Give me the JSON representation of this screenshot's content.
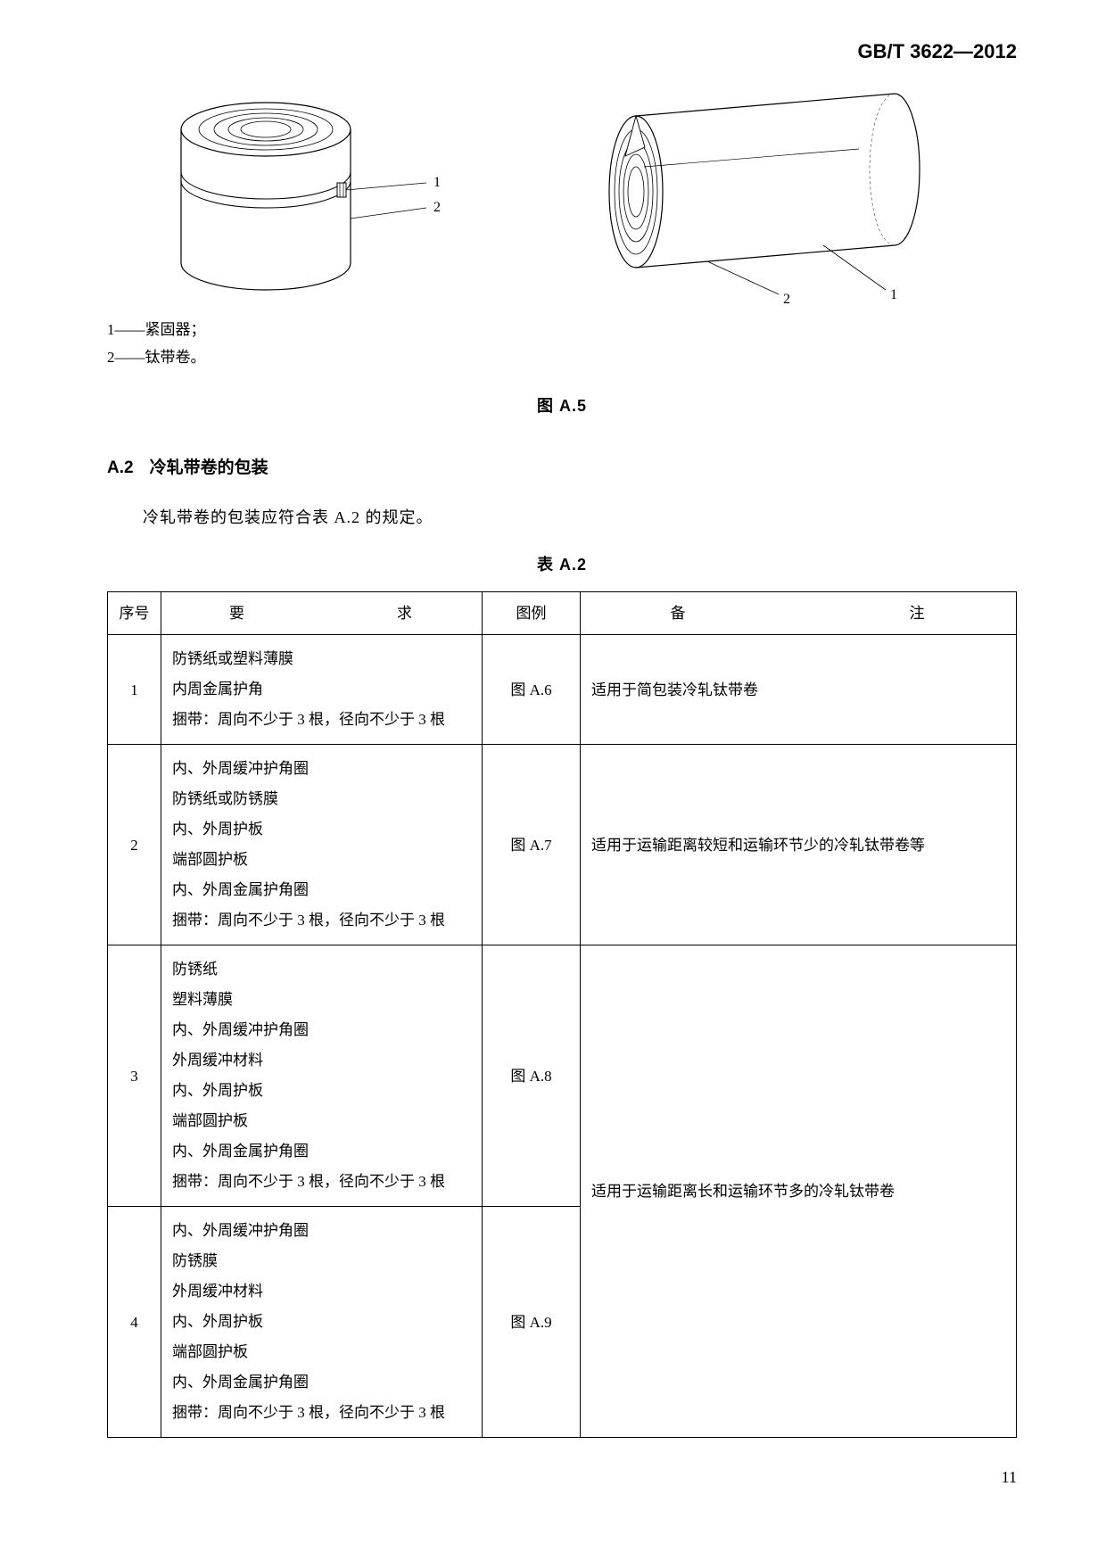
{
  "header": {
    "standard_code": "GB/T 3622—2012"
  },
  "figure": {
    "caption": "图 A.5",
    "left_label_1": "1",
    "left_label_2": "2",
    "right_label_1": "1",
    "right_label_2": "2",
    "legend_1": "1——紧固器；",
    "legend_2": "2——钛带卷。"
  },
  "section": {
    "num": "A.2",
    "title": "冷轧带卷的包装",
    "body": "冷轧带卷的包装应符合表 A.2 的规定。"
  },
  "table": {
    "caption": "表 A.2",
    "headers": {
      "seq": "序号",
      "req": "要　　　求",
      "fig": "图例",
      "note": "备　　　注"
    },
    "rows": [
      {
        "seq": "1",
        "req": [
          "防锈纸或塑料薄膜",
          "内周金属护角",
          "捆带：周向不少于 3 根，径向不少于 3 根"
        ],
        "fig": "图 A.6",
        "note": "适用于简包装冷轧钛带卷"
      },
      {
        "seq": "2",
        "req": [
          "内、外周缓冲护角圈",
          "防锈纸或防锈膜",
          "内、外周护板",
          "端部圆护板",
          "内、外周金属护角圈",
          "捆带：周向不少于 3 根，径向不少于 3 根"
        ],
        "fig": "图 A.7",
        "note": "适用于运输距离较短和运输环节少的冷轧钛带卷等"
      },
      {
        "seq": "3",
        "req": [
          "防锈纸",
          "塑料薄膜",
          "内、外周缓冲护角圈",
          "外周缓冲材料",
          "内、外周护板",
          "端部圆护板",
          "内、外周金属护角圈",
          "捆带：周向不少于 3 根，径向不少于 3 根"
        ],
        "fig": "图 A.8",
        "note_merged": "适用于运输距离长和运输环节多的冷轧钛带卷"
      },
      {
        "seq": "4",
        "req": [
          "内、外周缓冲护角圈",
          "防锈膜",
          "外周缓冲材料",
          "内、外周护板",
          "端部圆护板",
          "内、外周金属护角圈",
          "捆带：周向不少于 3 根，径向不少于 3 根"
        ],
        "fig": "图 A.9"
      }
    ]
  },
  "page_number": "11",
  "style": {
    "page_bg": "#ffffff",
    "text_color": "#000000",
    "stroke_color": "#000000",
    "fill_white": "#ffffff",
    "fill_light": "#f8f8f8"
  }
}
